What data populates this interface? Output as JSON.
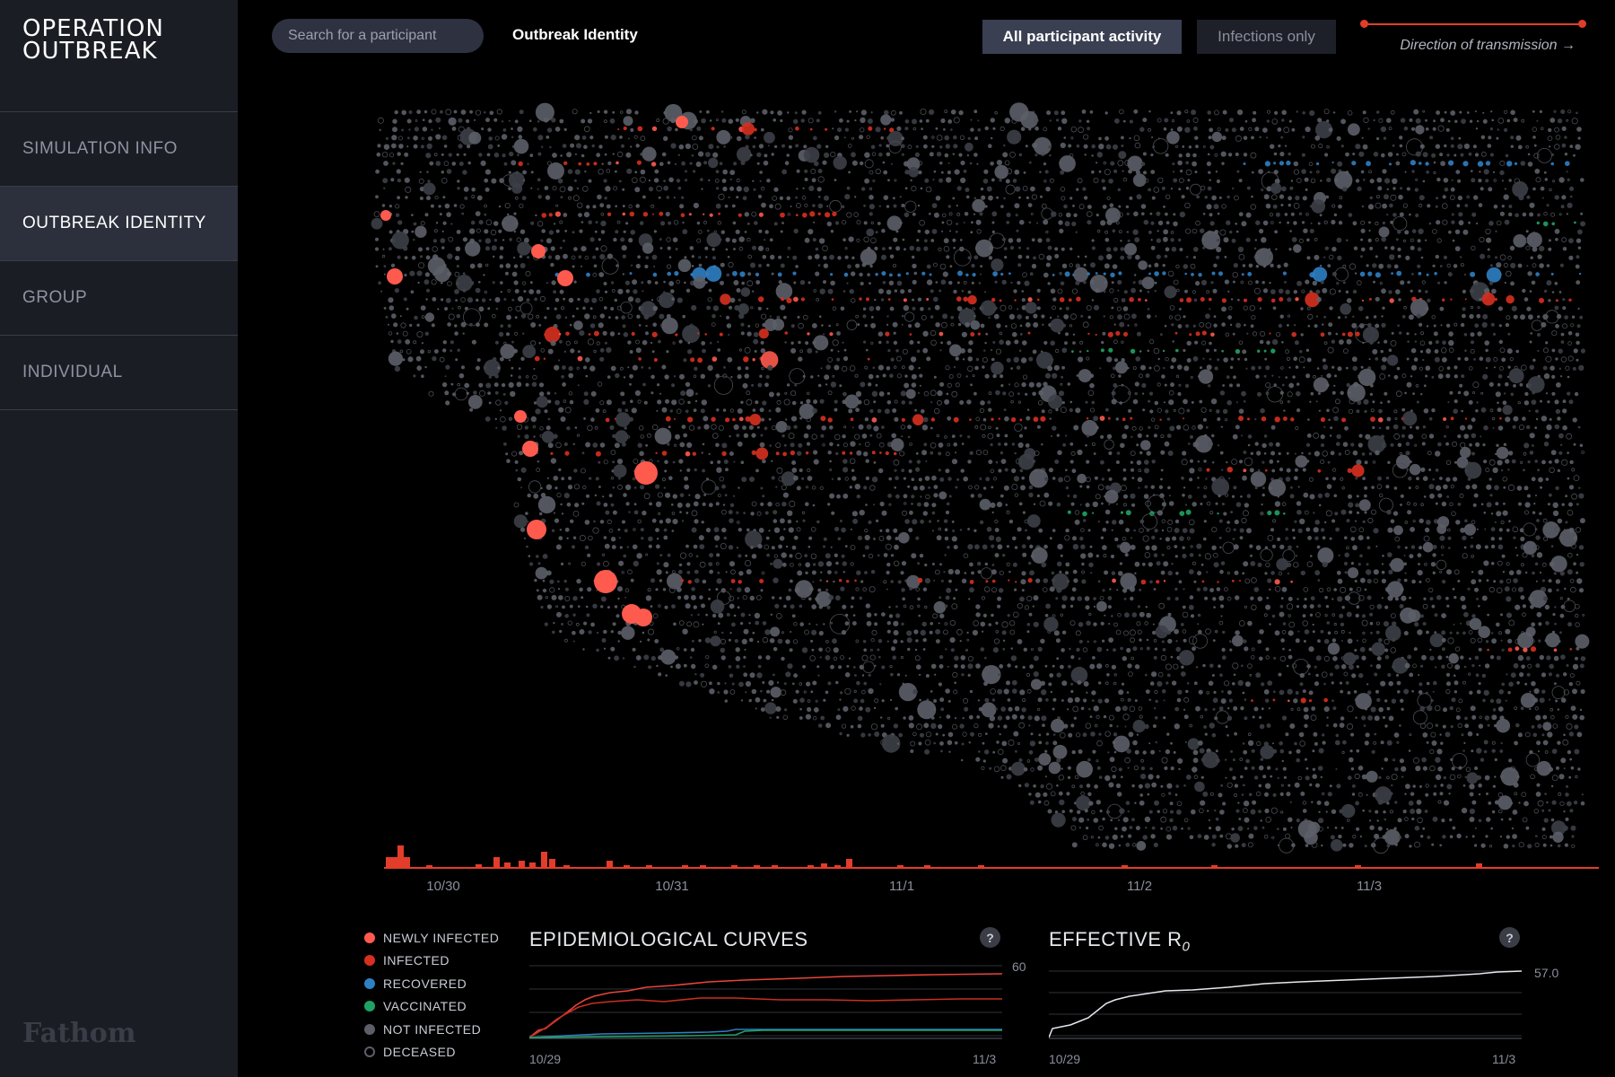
{
  "app": {
    "title_line1": "OPERATION",
    "title_line2": "OUTBREAK",
    "logo": "Fathom"
  },
  "sidebar": {
    "items": [
      {
        "label": "SIMULATION INFO",
        "active": false
      },
      {
        "label": "OUTBREAK IDENTITY",
        "active": true
      },
      {
        "label": "GROUP",
        "active": false
      },
      {
        "label": "INDIVIDUAL",
        "active": false
      }
    ]
  },
  "header": {
    "search_placeholder": "Search for a participant",
    "page_title": "Outbreak Identity",
    "toggle_all": "All participant activity",
    "toggle_infections": "Infections only",
    "direction_label": "Direction of transmission →"
  },
  "colors": {
    "newly_infected": "#ff5a4e",
    "infected": "#d8301f",
    "recovered": "#2f7fc4",
    "vaccinated": "#1fa363",
    "not_infected": "#5c5f68",
    "deceased": "#1a1a1a",
    "accent": "#e23d2a"
  },
  "timeline": {
    "dates": [
      "10/30",
      "10/31",
      "11/1",
      "11/2",
      "11/3"
    ]
  },
  "legend": {
    "items": [
      {
        "label": "NEWLY INFECTED",
        "color": "#ff5a4e",
        "hollow": false
      },
      {
        "label": "INFECTED",
        "color": "#d8301f",
        "hollow": false
      },
      {
        "label": "RECOVERED",
        "color": "#2f7fc4",
        "hollow": false
      },
      {
        "label": "VACCINATED",
        "color": "#1fa363",
        "hollow": false
      },
      {
        "label": "NOT INFECTED",
        "color": "#5c5f68",
        "hollow": false
      },
      {
        "label": "DECEASED",
        "color": "#5c5f68",
        "hollow": true
      }
    ]
  },
  "epi_curves": {
    "title": "EPIDEMIOLOGICAL CURVES",
    "help": "?",
    "max_label": "60",
    "x_start": "10/29",
    "x_end": "11/3"
  },
  "effective_r0": {
    "title": "EFFECTIVE R",
    "subscript": "0",
    "help": "?",
    "value_label": "57.0",
    "x_start": "10/29",
    "x_end": "11/3"
  }
}
